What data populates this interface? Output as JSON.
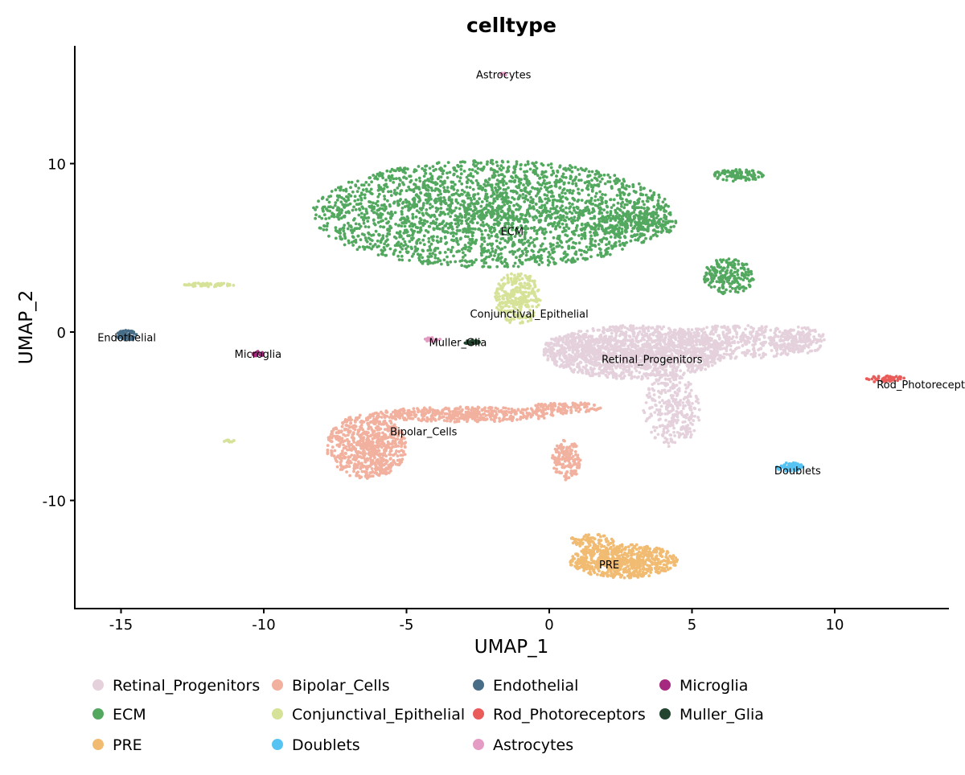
{
  "chart_data": {
    "type": "scatter",
    "title": "celltype",
    "xlabel": "UMAP_1",
    "ylabel": "UMAP_2",
    "xlim": [
      -16.6,
      14.0
    ],
    "ylim": [
      -16.4,
      17.0
    ],
    "xticks": [
      -15,
      -10,
      -5,
      0,
      5,
      10
    ],
    "yticks": [
      -10,
      0,
      10
    ],
    "grid": false,
    "legend_position": "bottom",
    "series": [
      {
        "name": "Retinal_Progenitors",
        "color": "#E4D1DC",
        "label_at": [
          3.6,
          -1.6
        ],
        "components": [
          [
            3,
            -1.2,
            3.2,
            1.6,
            1400
          ],
          [
            6.5,
            -0.6,
            2.8,
            1.0,
            500
          ],
          [
            8.8,
            -0.5,
            0.9,
            0.8,
            150
          ],
          [
            4.3,
            -4.6,
            1.0,
            2.2,
            300
          ],
          [
            1.2,
            -0.9,
            1.4,
            0.8,
            200
          ]
        ]
      },
      {
        "name": "ECM",
        "color": "#53A85F",
        "label_at": [
          -1.3,
          6.0
        ],
        "components": [
          [
            -2,
            7,
            6.3,
            3.2,
            2600
          ],
          [
            3.1,
            6.4,
            1.4,
            0.8,
            200
          ],
          [
            6.6,
            9.3,
            0.9,
            0.35,
            90
          ],
          [
            6.3,
            3.3,
            0.9,
            1.1,
            200
          ]
        ]
      },
      {
        "name": "PRE",
        "color": "#F1BB72",
        "label_at": [
          2.1,
          -13.8
        ],
        "components": [
          [
            2.6,
            -13.6,
            1.9,
            1.0,
            700
          ],
          [
            1.5,
            -12.4,
            0.8,
            0.4,
            80
          ]
        ]
      },
      {
        "name": "Bipolar_Cells",
        "color": "#F2B09E",
        "label_at": [
          -4.4,
          -5.9
        ],
        "components": [
          [
            -6.4,
            -6.8,
            1.4,
            1.9,
            700
          ],
          [
            -3.0,
            -4.9,
            3.2,
            0.45,
            450
          ],
          [
            0.5,
            -4.5,
            1.3,
            0.35,
            120
          ],
          [
            0.6,
            -7.6,
            0.5,
            1.2,
            150
          ]
        ]
      },
      {
        "name": "Conjunctival_Epithelial",
        "color": "#D6E297",
        "label_at": [
          -0.7,
          1.1
        ],
        "components": [
          [
            -1.1,
            2.0,
            0.8,
            1.6,
            300
          ],
          [
            -11.9,
            2.8,
            0.9,
            0.12,
            60
          ],
          [
            -11.2,
            -6.5,
            0.2,
            0.1,
            10
          ]
        ]
      },
      {
        "name": "Doublets",
        "color": "#57C3F3",
        "label_at": [
          8.7,
          -8.2
        ],
        "components": [
          [
            8.4,
            -8.0,
            0.5,
            0.25,
            70
          ]
        ]
      },
      {
        "name": "Endothelial",
        "color": "#476D87",
        "label_at": [
          -14.8,
          -0.3
        ],
        "components": [
          [
            -14.8,
            -0.2,
            0.35,
            0.3,
            60
          ]
        ]
      },
      {
        "name": "Rod_Photoreceptors",
        "color": "#E95C59",
        "label_at": [
          13.3,
          -3.1
        ],
        "components": [
          [
            11.8,
            -2.8,
            0.7,
            0.2,
            50
          ]
        ]
      },
      {
        "name": "Astrocytes",
        "color": "#E59CC4",
        "label_at": [
          -1.6,
          15.3
        ],
        "components": [
          [
            -1.6,
            15.3,
            0.15,
            0.1,
            6
          ],
          [
            -4.1,
            -0.45,
            0.3,
            0.12,
            20
          ]
        ]
      },
      {
        "name": "Microglia",
        "color": "#A52A7F",
        "label_at": [
          -10.2,
          -1.3
        ],
        "components": [
          [
            -10.2,
            -1.3,
            0.2,
            0.15,
            20
          ]
        ]
      },
      {
        "name": "Muller_Glia",
        "color": "#23452F",
        "label_at": [
          -3.2,
          -0.6
        ],
        "components": [
          [
            -2.7,
            -0.6,
            0.3,
            0.12,
            25
          ]
        ]
      }
    ],
    "legend_order": [
      "Retinal_Progenitors",
      "Bipolar_Cells",
      "Endothelial",
      "Microglia",
      "ECM",
      "Conjunctival_Epithelial",
      "Rod_Photoreceptors",
      "Muller_Glia",
      "PRE",
      "Doublets",
      "Astrocytes"
    ]
  }
}
